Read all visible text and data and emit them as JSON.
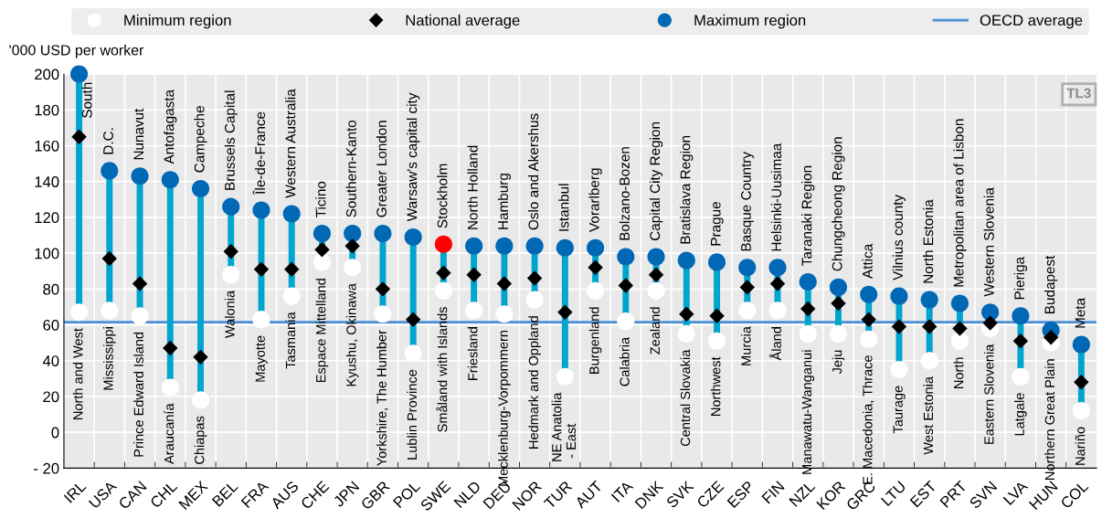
{
  "chart_data": {
    "type": "scatter",
    "ylabel": "'000 USD per worker",
    "categories": [
      "IRL",
      "USA",
      "CAN",
      "CHL",
      "MEX",
      "BEL",
      "FRA",
      "AUS",
      "CHE",
      "JPN",
      "GBR",
      "POL",
      "SWE",
      "NLD",
      "DEU",
      "NOR",
      "TUR",
      "AUT",
      "ITA",
      "DNK",
      "SVK",
      "CZE",
      "ESP",
      "FIN",
      "NZL",
      "KOR",
      "GRC",
      "LTU",
      "EST",
      "PRT",
      "SVN",
      "LVA",
      "HUN",
      "COL"
    ],
    "series": [
      {
        "name": "Minimum region",
        "color": "#ffffff",
        "marker": "circle",
        "values": [
          67,
          68,
          65,
          25,
          18,
          88,
          63,
          76,
          95,
          92,
          66,
          44,
          79,
          68,
          66,
          74,
          31,
          79,
          62,
          79,
          55,
          51,
          68,
          68,
          55,
          55,
          52,
          35,
          40,
          51,
          58,
          31,
          50,
          12
        ],
        "value_labels": [
          "North and West",
          "Mississippi",
          "Prince Edward Island",
          "Araucanía",
          "Chiapas",
          "Walonia",
          "Mayotte",
          "Tasmania",
          "Espace Mittelland",
          "Kyushu, Okinawa",
          "Yorkshire, The Humber",
          "Lublin Province",
          "Småland with Islands",
          "Friesland",
          "Mecklenburg-Vorpommern",
          "Hedmark and Oppland",
          "NE Anatolia\n - East",
          "Burgenland",
          "Calabria",
          "Zealand",
          "Central Slovakia",
          "Northwest",
          "Murcia",
          "Åland",
          "Manawatu-Wanganui",
          "Jeju",
          "E. Macedonia, Thrace",
          "Taurage",
          "West Estonia",
          "North",
          "Eastern Slovenia",
          "Latgale",
          "Northern Great Plain",
          "Nariño"
        ]
      },
      {
        "name": "National average",
        "color": "#000000",
        "marker": "diamond",
        "values": [
          165,
          97,
          83,
          47,
          42,
          101,
          91,
          91,
          102,
          104,
          80,
          63,
          89,
          88,
          83,
          86,
          67,
          92,
          82,
          88,
          66,
          65,
          81,
          83,
          69,
          72,
          63,
          59,
          59,
          58,
          61,
          51,
          53,
          28
        ]
      },
      {
        "name": "Maximum region",
        "color": "#0068b4",
        "marker": "circle",
        "colors": [
          "#0068b4",
          "#0068b4",
          "#0068b4",
          "#0068b4",
          "#0068b4",
          "#0068b4",
          "#0068b4",
          "#0068b4",
          "#0068b4",
          "#0068b4",
          "#0068b4",
          "#0068b4",
          "#ff0000",
          "#0068b4",
          "#0068b4",
          "#0068b4",
          "#0068b4",
          "#0068b4",
          "#0068b4",
          "#0068b4",
          "#0068b4",
          "#0068b4",
          "#0068b4",
          "#0068b4",
          "#0068b4",
          "#0068b4",
          "#0068b4",
          "#0068b4",
          "#0068b4",
          "#0068b4",
          "#0068b4",
          "#0068b4",
          "#0068b4",
          "#0068b4"
        ],
        "values": [
          200,
          146,
          143,
          141,
          136,
          126,
          124,
          122,
          111,
          111,
          111,
          109,
          105,
          104,
          104,
          104,
          103,
          103,
          98,
          98,
          96,
          95,
          92,
          92,
          84,
          81,
          77,
          76,
          74,
          72,
          67,
          65,
          57,
          49
        ],
        "value_labels": [
          "South",
          "D.C.",
          "Nunavut",
          "Antofagasta",
          "Campeche",
          "Brussels Capital",
          "Île-de-France",
          "Western Australia",
          "Ticino",
          "Southern-Kanto",
          "Greater London",
          "Warsaw's capital city",
          "Stockholm",
          "North Holland",
          "Hamburg",
          "Oslo and Akershus",
          "Istanbul",
          "Vorarlberg",
          "Bolzano-Bozen",
          "Capital City Region",
          "Bratislava Region",
          "Prague",
          "Basque Country",
          "Helsinki-Uusimaa",
          "Taranaki Region",
          "Chungcheong Region",
          "Attica",
          "Vilnius county",
          "North Estonia",
          "Metropolitan area of Lisbon",
          "Western Slovenia",
          "Pieriga",
          "Budapest",
          "Meta"
        ]
      }
    ],
    "ref_lines": [
      {
        "axis": "y",
        "value": 61.5,
        "label": "OECD average",
        "color": "#4a8fd8",
        "line_style": "solid"
      }
    ],
    "ylim": [
      -20,
      200
    ],
    "yticks": [
      {
        "value": -20,
        "label": "- 20"
      },
      0,
      20,
      40,
      60,
      80,
      100,
      120,
      140,
      160,
      180,
      200
    ],
    "grid": true,
    "legend": "top",
    "annotations": [
      "TL3"
    ]
  }
}
